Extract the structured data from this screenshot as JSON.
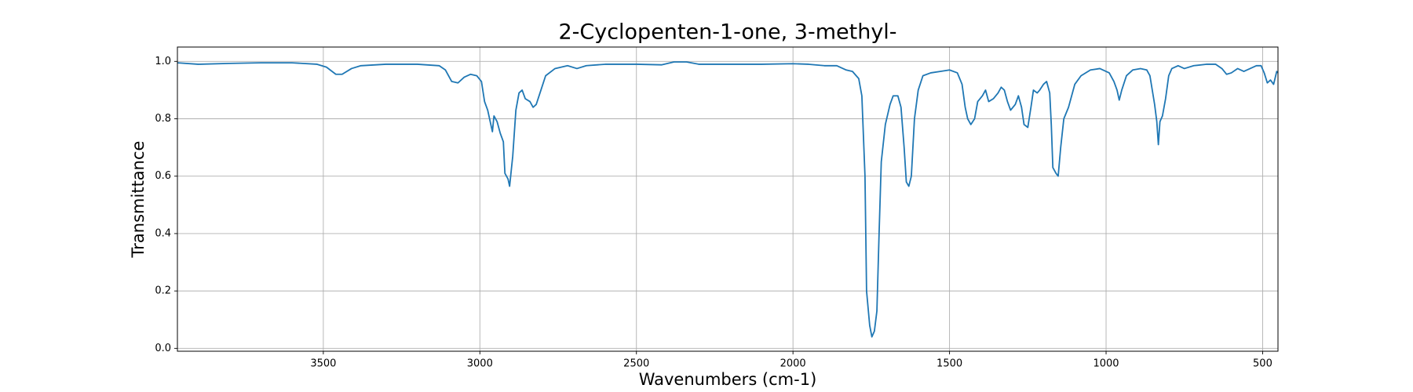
{
  "chart_data": {
    "type": "line",
    "title": "2-Cyclopenten-1-one, 3-methyl-",
    "xlabel": "Wavenumbers (cm-1)",
    "ylabel": "Transmittance",
    "color": "#1f77b4",
    "grid": true,
    "xlim": [
      3966,
      451
    ],
    "ylim": [
      -0.01,
      1.05
    ],
    "xticks": [
      3500,
      3000,
      2500,
      2000,
      1500,
      1000,
      500
    ],
    "yticks": [
      {
        "value": 0,
        "label": "0.0"
      },
      {
        "value": 0.2,
        "label": "0.2"
      },
      {
        "value": 0.4,
        "label": "0.4"
      },
      {
        "value": 0.6,
        "label": "0.6"
      },
      {
        "value": 0.8,
        "label": "0.8"
      },
      {
        "value": 1,
        "label": "1.0"
      }
    ],
    "x": [
      3966,
      3900,
      3800,
      3700,
      3600,
      3520,
      3490,
      3460,
      3440,
      3410,
      3380,
      3300,
      3200,
      3130,
      3110,
      3090,
      3070,
      3050,
      3030,
      3010,
      2995,
      2985,
      2975,
      2965,
      2960,
      2955,
      2945,
      2935,
      2925,
      2920,
      2910,
      2905,
      2895,
      2885,
      2875,
      2865,
      2855,
      2840,
      2830,
      2820,
      2805,
      2790,
      2760,
      2720,
      2690,
      2660,
      2600,
      2500,
      2420,
      2380,
      2340,
      2300,
      2200,
      2100,
      2000,
      1950,
      1900,
      1860,
      1830,
      1810,
      1790,
      1780,
      1770,
      1765,
      1755,
      1748,
      1740,
      1732,
      1725,
      1718,
      1705,
      1690,
      1680,
      1665,
      1655,
      1645,
      1638,
      1630,
      1622,
      1612,
      1600,
      1585,
      1560,
      1530,
      1500,
      1475,
      1460,
      1450,
      1442,
      1432,
      1420,
      1410,
      1395,
      1385,
      1375,
      1360,
      1345,
      1335,
      1325,
      1315,
      1305,
      1290,
      1280,
      1270,
      1262,
      1250,
      1240,
      1232,
      1220,
      1212,
      1200,
      1190,
      1180,
      1175,
      1170,
      1160,
      1153,
      1145,
      1135,
      1120,
      1100,
      1080,
      1050,
      1020,
      990,
      975,
      965,
      958,
      950,
      935,
      915,
      890,
      870,
      860,
      845,
      838,
      833,
      828,
      820,
      810,
      800,
      790,
      770,
      750,
      720,
      680,
      650,
      630,
      615,
      600,
      580,
      560,
      540,
      520,
      505,
      495,
      485,
      475,
      465,
      455,
      451
    ],
    "values": [
      0.995,
      0.99,
      0.993,
      0.995,
      0.995,
      0.99,
      0.98,
      0.955,
      0.955,
      0.975,
      0.985,
      0.99,
      0.99,
      0.985,
      0.97,
      0.93,
      0.925,
      0.945,
      0.955,
      0.95,
      0.93,
      0.86,
      0.83,
      0.78,
      0.755,
      0.81,
      0.79,
      0.75,
      0.72,
      0.61,
      0.59,
      0.565,
      0.67,
      0.83,
      0.89,
      0.9,
      0.87,
      0.86,
      0.84,
      0.85,
      0.9,
      0.95,
      0.975,
      0.985,
      0.975,
      0.985,
      0.99,
      0.99,
      0.988,
      0.998,
      0.998,
      0.99,
      0.99,
      0.99,
      0.992,
      0.99,
      0.985,
      0.985,
      0.97,
      0.965,
      0.94,
      0.88,
      0.6,
      0.2,
      0.08,
      0.04,
      0.06,
      0.13,
      0.4,
      0.65,
      0.78,
      0.85,
      0.88,
      0.88,
      0.84,
      0.7,
      0.58,
      0.565,
      0.6,
      0.8,
      0.9,
      0.95,
      0.96,
      0.965,
      0.97,
      0.96,
      0.92,
      0.84,
      0.8,
      0.78,
      0.8,
      0.86,
      0.88,
      0.9,
      0.86,
      0.87,
      0.89,
      0.91,
      0.9,
      0.86,
      0.83,
      0.85,
      0.88,
      0.84,
      0.78,
      0.77,
      0.84,
      0.9,
      0.89,
      0.9,
      0.92,
      0.93,
      0.89,
      0.78,
      0.63,
      0.61,
      0.6,
      0.7,
      0.8,
      0.84,
      0.92,
      0.95,
      0.97,
      0.975,
      0.96,
      0.93,
      0.9,
      0.865,
      0.9,
      0.95,
      0.97,
      0.975,
      0.97,
      0.95,
      0.85,
      0.79,
      0.71,
      0.79,
      0.81,
      0.87,
      0.95,
      0.975,
      0.985,
      0.975,
      0.985,
      0.99,
      0.99,
      0.975,
      0.955,
      0.96,
      0.975,
      0.965,
      0.975,
      0.985,
      0.985,
      0.96,
      0.925,
      0.935,
      0.92,
      0.965,
      0.96
    ]
  }
}
